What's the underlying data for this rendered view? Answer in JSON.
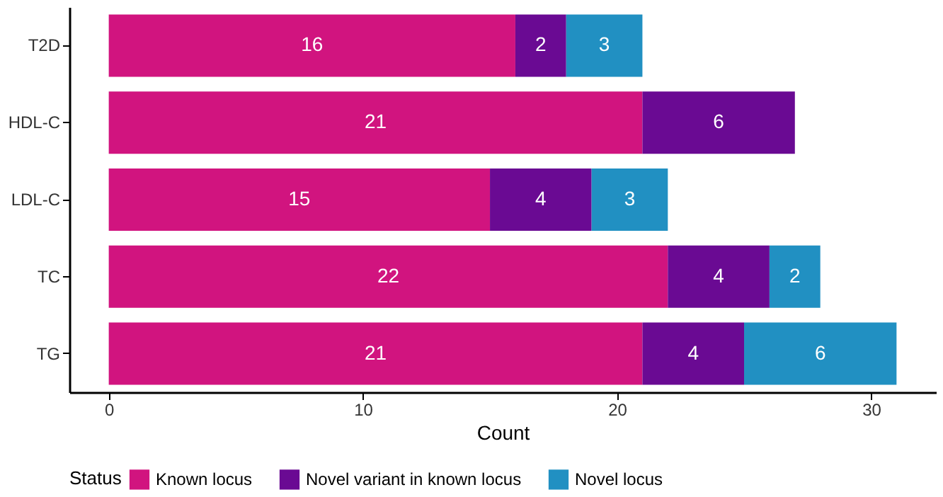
{
  "chart_data": {
    "type": "bar",
    "orientation": "horizontal",
    "stacked": true,
    "categories": [
      "T2D",
      "HDL-C",
      "LDL-C",
      "TC",
      "TG"
    ],
    "series": [
      {
        "name": "Known locus",
        "color": "#d1147f",
        "values": [
          16,
          21,
          15,
          22,
          21
        ]
      },
      {
        "name": "Novel variant in known locus",
        "color": "#6a0a93",
        "values": [
          2,
          6,
          4,
          4,
          4
        ]
      },
      {
        "name": "Novel locus",
        "color": "#2190c2",
        "values": [
          3,
          null,
          3,
          2,
          6
        ]
      }
    ],
    "xlabel": "Count",
    "legend_title": "Status",
    "xlim": [
      -1.55,
      32.55
    ],
    "xticks": [
      0,
      10,
      20,
      30
    ],
    "data_labels": true,
    "grid": false,
    "legend": "bottom"
  }
}
